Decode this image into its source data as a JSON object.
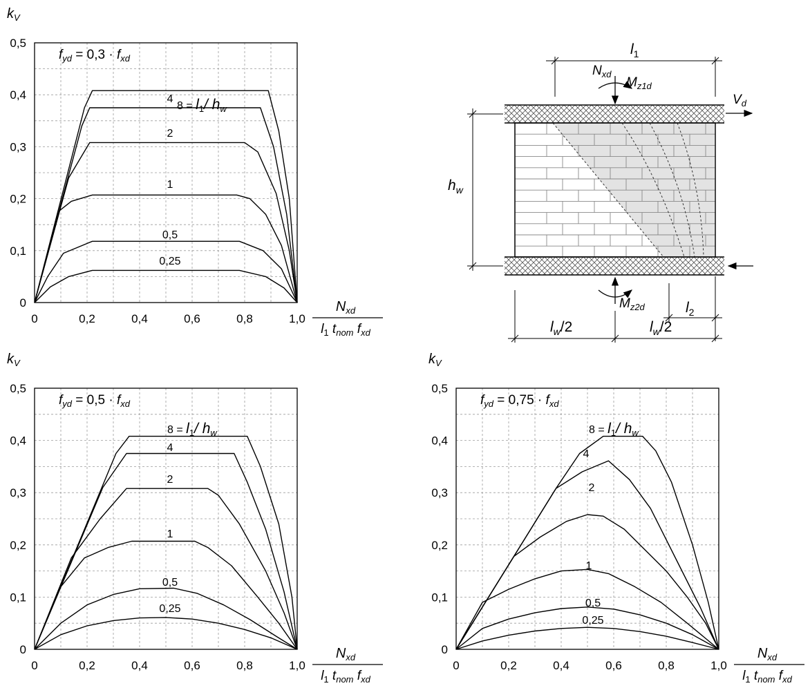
{
  "chart_data": [
    {
      "type": "line",
      "ylabel": "k",
      "ylabel_sub": "V",
      "condition": {
        "main": "f",
        "sub": "yd",
        "rest": " = 0,3 · ",
        "f": "f",
        "fsub": "xd"
      },
      "x_axis_label": {
        "num": "N",
        "num_sub": "xd",
        "den": "l",
        "den_sub1": "1",
        "den_t": " t",
        "den_sub2": "nom",
        "den_f": " f",
        "den_sub3": "xd"
      },
      "xlim": [
        0,
        1.0
      ],
      "ylim": [
        0,
        0.5
      ],
      "x_ticks": [
        "0",
        "0,2",
        "0,4",
        "0,6",
        "0,8",
        "1,0"
      ],
      "y_ticks": [
        "0",
        "0,1",
        "0,2",
        "0,3",
        "0,4",
        "0,5"
      ],
      "grid": true,
      "series_labels": [
        "8 = ",
        "4",
        "2",
        "1",
        "0,5",
        "0,25"
      ],
      "series_label_suffix": {
        "l": "l",
        "sub1": "1",
        "slash": "/ h",
        "sub2": "w"
      },
      "series": [
        {
          "name": "8",
          "points": [
            [
              0,
              0
            ],
            [
              0.19,
              0.375
            ],
            [
              0.22,
              0.408
            ],
            [
              0.89,
              0.408
            ],
            [
              0.93,
              0.33
            ],
            [
              0.97,
              0.2
            ],
            [
              1.0,
              0
            ]
          ]
        },
        {
          "name": "4",
          "points": [
            [
              0,
              0
            ],
            [
              0.18,
              0.34
            ],
            [
              0.21,
              0.375
            ],
            [
              0.86,
              0.375
            ],
            [
              0.91,
              0.3
            ],
            [
              0.96,
              0.17
            ],
            [
              1.0,
              0
            ]
          ]
        },
        {
          "name": "2",
          "points": [
            [
              0,
              0
            ],
            [
              0.13,
              0.24
            ],
            [
              0.21,
              0.308
            ],
            [
              0.8,
              0.308
            ],
            [
              0.85,
              0.29
            ],
            [
              0.92,
              0.21
            ],
            [
              0.97,
              0.1
            ],
            [
              1.0,
              0
            ]
          ]
        },
        {
          "name": "1",
          "points": [
            [
              0,
              0
            ],
            [
              0.09,
              0.175
            ],
            [
              0.14,
              0.195
            ],
            [
              0.22,
              0.207
            ],
            [
              0.77,
              0.207
            ],
            [
              0.82,
              0.2
            ],
            [
              0.88,
              0.17
            ],
            [
              0.94,
              0.11
            ],
            [
              1.0,
              0
            ]
          ]
        },
        {
          "name": "0,5",
          "points": [
            [
              0,
              0
            ],
            [
              0.05,
              0.05
            ],
            [
              0.11,
              0.095
            ],
            [
              0.22,
              0.118
            ],
            [
              0.78,
              0.118
            ],
            [
              0.87,
              0.1
            ],
            [
              0.94,
              0.065
            ],
            [
              1.0,
              0
            ]
          ]
        },
        {
          "name": "0,25",
          "points": [
            [
              0,
              0
            ],
            [
              0.06,
              0.03
            ],
            [
              0.13,
              0.05
            ],
            [
              0.22,
              0.062
            ],
            [
              0.78,
              0.062
            ],
            [
              0.88,
              0.05
            ],
            [
              0.95,
              0.028
            ],
            [
              1.0,
              0
            ]
          ]
        }
      ]
    },
    {
      "type": "line",
      "ylabel": "k",
      "ylabel_sub": "V",
      "condition": {
        "main": "f",
        "sub": "yd",
        "rest": " = 0,5 · ",
        "f": "f",
        "fsub": "xd"
      },
      "x_axis_label": {
        "num": "N",
        "num_sub": "xd",
        "den": "l",
        "den_sub1": "1",
        "den_t": " t",
        "den_sub2": "nom",
        "den_f": " f",
        "den_sub3": "xd"
      },
      "xlim": [
        0,
        1.0
      ],
      "ylim": [
        0,
        0.5
      ],
      "x_ticks": [
        "0",
        "0,2",
        "0,4",
        "0,6",
        "0,8",
        "1,0"
      ],
      "y_ticks": [
        "0",
        "0,1",
        "0,2",
        "0,3",
        "0,4",
        "0,5"
      ],
      "grid": true,
      "series_labels": [
        "8 = ",
        "4",
        "2",
        "1",
        "0,5",
        "0,25"
      ],
      "series_label_suffix": {
        "l": "l",
        "sub1": "1",
        "slash": "/ h",
        "sub2": "w"
      },
      "series": [
        {
          "name": "8",
          "points": [
            [
              0,
              0
            ],
            [
              0.31,
              0.375
            ],
            [
              0.36,
              0.408
            ],
            [
              0.81,
              0.408
            ],
            [
              0.86,
              0.35
            ],
            [
              0.93,
              0.24
            ],
            [
              0.98,
              0.1
            ],
            [
              1.0,
              0
            ]
          ]
        },
        {
          "name": "4",
          "points": [
            [
              0,
              0
            ],
            [
              0.26,
              0.31
            ],
            [
              0.35,
              0.375
            ],
            [
              0.76,
              0.375
            ],
            [
              0.81,
              0.32
            ],
            [
              0.88,
              0.23
            ],
            [
              0.95,
              0.11
            ],
            [
              1.0,
              0
            ]
          ]
        },
        {
          "name": "2",
          "points": [
            [
              0,
              0
            ],
            [
              0.14,
              0.175
            ],
            [
              0.25,
              0.25
            ],
            [
              0.35,
              0.308
            ],
            [
              0.66,
              0.308
            ],
            [
              0.7,
              0.295
            ],
            [
              0.78,
              0.24
            ],
            [
              0.88,
              0.15
            ],
            [
              0.95,
              0.07
            ],
            [
              1.0,
              0
            ]
          ]
        },
        {
          "name": "1",
          "points": [
            [
              0,
              0
            ],
            [
              0.1,
              0.12
            ],
            [
              0.19,
              0.175
            ],
            [
              0.28,
              0.195
            ],
            [
              0.37,
              0.207
            ],
            [
              0.61,
              0.207
            ],
            [
              0.66,
              0.195
            ],
            [
              0.75,
              0.16
            ],
            [
              0.85,
              0.1
            ],
            [
              0.93,
              0.05
            ],
            [
              1.0,
              0
            ]
          ]
        },
        {
          "name": "0,5",
          "points": [
            [
              0,
              0
            ],
            [
              0.1,
              0.05
            ],
            [
              0.2,
              0.085
            ],
            [
              0.3,
              0.105
            ],
            [
              0.4,
              0.116
            ],
            [
              0.53,
              0.117
            ],
            [
              0.62,
              0.107
            ],
            [
              0.72,
              0.085
            ],
            [
              0.82,
              0.057
            ],
            [
              0.92,
              0.025
            ],
            [
              1.0,
              0
            ]
          ]
        },
        {
          "name": "0,25",
          "points": [
            [
              0,
              0
            ],
            [
              0.1,
              0.028
            ],
            [
              0.2,
              0.045
            ],
            [
              0.3,
              0.055
            ],
            [
              0.4,
              0.06
            ],
            [
              0.5,
              0.061
            ],
            [
              0.6,
              0.058
            ],
            [
              0.7,
              0.05
            ],
            [
              0.8,
              0.038
            ],
            [
              0.9,
              0.022
            ],
            [
              1.0,
              0
            ]
          ]
        }
      ]
    },
    {
      "type": "line",
      "ylabel": "k",
      "ylabel_sub": "V",
      "condition": {
        "main": "f",
        "sub": "yd",
        "rest": " = 0,75 · ",
        "f": "f",
        "fsub": "xd"
      },
      "x_axis_label": {
        "num": "N",
        "num_sub": "xd",
        "den": "l",
        "den_sub1": "1",
        "den_t": " t",
        "den_sub2": "nom",
        "den_f": " f",
        "den_sub3": "xd"
      },
      "xlim": [
        0,
        1.0
      ],
      "ylim": [
        0,
        0.5
      ],
      "x_ticks": [
        "0",
        "0,2",
        "0,4",
        "0,6",
        "0,8",
        "1,0"
      ],
      "y_ticks": [
        "0",
        "0,1",
        "0,2",
        "0,3",
        "0,4",
        "0,5"
      ],
      "grid": true,
      "series_labels": [
        "8 = ",
        "4",
        "2",
        "1",
        "0,5",
        "0,25"
      ],
      "series_label_suffix": {
        "l": "l",
        "sub1": "1",
        "slash": "/ h",
        "sub2": "w"
      },
      "series": [
        {
          "name": "8",
          "points": [
            [
              0,
              0
            ],
            [
              0.22,
              0.178
            ],
            [
              0.38,
              0.308
            ],
            [
              0.47,
              0.375
            ],
            [
              0.56,
              0.408
            ],
            [
              0.71,
              0.408
            ],
            [
              0.76,
              0.38
            ],
            [
              0.82,
              0.32
            ],
            [
              0.9,
              0.2
            ],
            [
              0.96,
              0.09
            ],
            [
              1.0,
              0
            ]
          ]
        },
        {
          "name": "4",
          "points": [
            [
              0,
              0
            ],
            [
              0.22,
              0.178
            ],
            [
              0.38,
              0.308
            ],
            [
              0.48,
              0.34
            ],
            [
              0.58,
              0.361
            ],
            [
              0.66,
              0.325
            ],
            [
              0.74,
              0.27
            ],
            [
              0.84,
              0.17
            ],
            [
              0.93,
              0.08
            ],
            [
              1.0,
              0
            ]
          ]
        },
        {
          "name": "2",
          "points": [
            [
              0,
              0
            ],
            [
              0.22,
              0.178
            ],
            [
              0.32,
              0.215
            ],
            [
              0.42,
              0.245
            ],
            [
              0.5,
              0.258
            ],
            [
              0.56,
              0.255
            ],
            [
              0.64,
              0.23
            ],
            [
              0.72,
              0.19
            ],
            [
              0.8,
              0.15
            ],
            [
              0.88,
              0.1
            ],
            [
              0.95,
              0.05
            ],
            [
              1.0,
              0
            ]
          ]
        },
        {
          "name": "1",
          "points": [
            [
              0,
              0
            ],
            [
              0.1,
              0.09
            ],
            [
              0.2,
              0.115
            ],
            [
              0.3,
              0.135
            ],
            [
              0.4,
              0.15
            ],
            [
              0.5,
              0.153
            ],
            [
              0.58,
              0.145
            ],
            [
              0.68,
              0.12
            ],
            [
              0.78,
              0.09
            ],
            [
              0.88,
              0.05
            ],
            [
              1.0,
              0
            ]
          ]
        },
        {
          "name": "0,5",
          "points": [
            [
              0,
              0
            ],
            [
              0.1,
              0.04
            ],
            [
              0.2,
              0.058
            ],
            [
              0.3,
              0.07
            ],
            [
              0.4,
              0.078
            ],
            [
              0.5,
              0.081
            ],
            [
              0.6,
              0.077
            ],
            [
              0.7,
              0.066
            ],
            [
              0.8,
              0.05
            ],
            [
              0.9,
              0.028
            ],
            [
              1.0,
              0
            ]
          ]
        },
        {
          "name": "0,25",
          "points": [
            [
              0,
              0
            ],
            [
              0.1,
              0.016
            ],
            [
              0.2,
              0.027
            ],
            [
              0.3,
              0.035
            ],
            [
              0.4,
              0.04
            ],
            [
              0.5,
              0.042
            ],
            [
              0.6,
              0.04
            ],
            [
              0.7,
              0.034
            ],
            [
              0.8,
              0.025
            ],
            [
              0.9,
              0.013
            ],
            [
              1.0,
              0
            ]
          ]
        }
      ]
    }
  ],
  "diagram": {
    "l1": {
      "main": "l",
      "sub": "1"
    },
    "l2": {
      "main": "l",
      "sub": "2"
    },
    "Nxd": {
      "main": "N",
      "sub": "xd"
    },
    "Mz1d": {
      "main": "M",
      "sub": "z1d"
    },
    "Mz2d": {
      "main": "M",
      "sub": "z2d"
    },
    "Vd": {
      "main": "V",
      "sub": "d"
    },
    "hw": {
      "main": "h",
      "sub": "w"
    },
    "lw_half": {
      "main": "l",
      "sub": "w",
      "rest": "/2"
    }
  }
}
